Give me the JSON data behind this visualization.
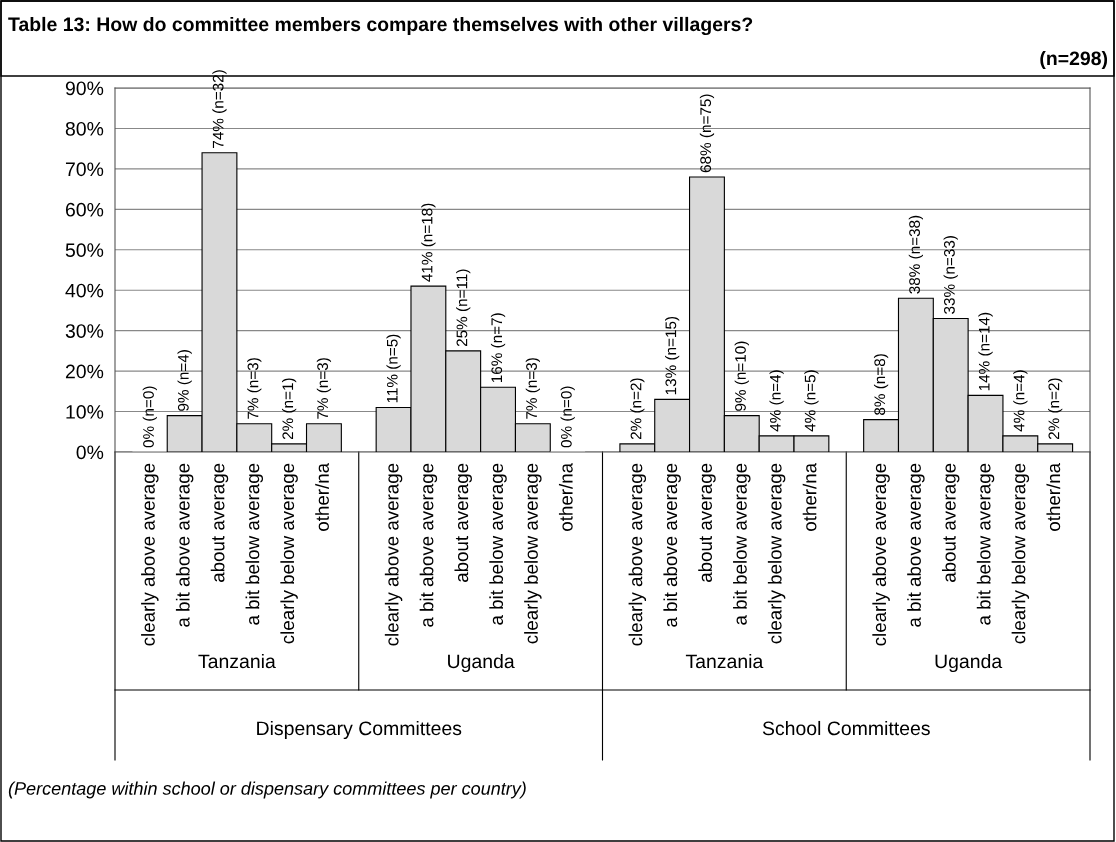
{
  "chart_data": {
    "type": "bar",
    "title": "Table 13: How do committee members compare themselves with other villagers?",
    "subtitle": "(n=298)",
    "categories": [
      "clearly above average",
      "a bit above average",
      "about average",
      "a bit below average",
      "clearly below average",
      "other/na",
      "clearly above average",
      "a bit above average",
      "about average",
      "a bit below average",
      "clearly below average",
      "other/na",
      "clearly above average",
      "a bit above average",
      "about average",
      "a bit below average",
      "clearly below average",
      "other/na",
      "clearly above average",
      "a bit above average",
      "about average",
      "a bit below average",
      "clearly below average",
      "other/na"
    ],
    "values": [
      0,
      9,
      74,
      7,
      2,
      7,
      11,
      41,
      25,
      16,
      7,
      0,
      2,
      13,
      68,
      9,
      4,
      4,
      8,
      38,
      33,
      14,
      4,
      2
    ],
    "value_labels": [
      "0% (n=0)",
      "9% (n=4)",
      "74% (n=32)",
      "7% (n=3)",
      "2% (n=1)",
      "7% (n=3)",
      "11% (n=5)",
      "41% (n=18)",
      "25% (n=11)",
      "16% (n=7)",
      "7% (n=3)",
      "0% (n=0)",
      "2% (n=2)",
      "13% (n=15)",
      "68% (n=75)",
      "9% (n=10)",
      "4% (n=4)",
      "4% (n=5)",
      "8% (n=8)",
      "38% (n=38)",
      "33% (n=33)",
      "14% (n=14)",
      "4% (n=4)",
      "2% (n=2)"
    ],
    "color": "#d9d9d9",
    "ylim": [
      0,
      90
    ],
    "yticks": [
      {
        "value": 0,
        "label": "0%"
      },
      {
        "value": 10,
        "label": "10%"
      },
      {
        "value": 20,
        "label": "20%"
      },
      {
        "value": 30,
        "label": "30%"
      },
      {
        "value": 40,
        "label": "40%"
      },
      {
        "value": 50,
        "label": "50%"
      },
      {
        "value": 60,
        "label": "60%"
      },
      {
        "value": 70,
        "label": "70%"
      },
      {
        "value": 80,
        "label": "80%"
      },
      {
        "value": 90,
        "label": "90%"
      }
    ],
    "grid": "y",
    "annotations": [
      "Tanzania",
      "Uganda",
      "Tanzania",
      "Uganda",
      "Dispensary Committees",
      "School Committees",
      "(Percentage within school or dispensary committees per country)"
    ]
  }
}
